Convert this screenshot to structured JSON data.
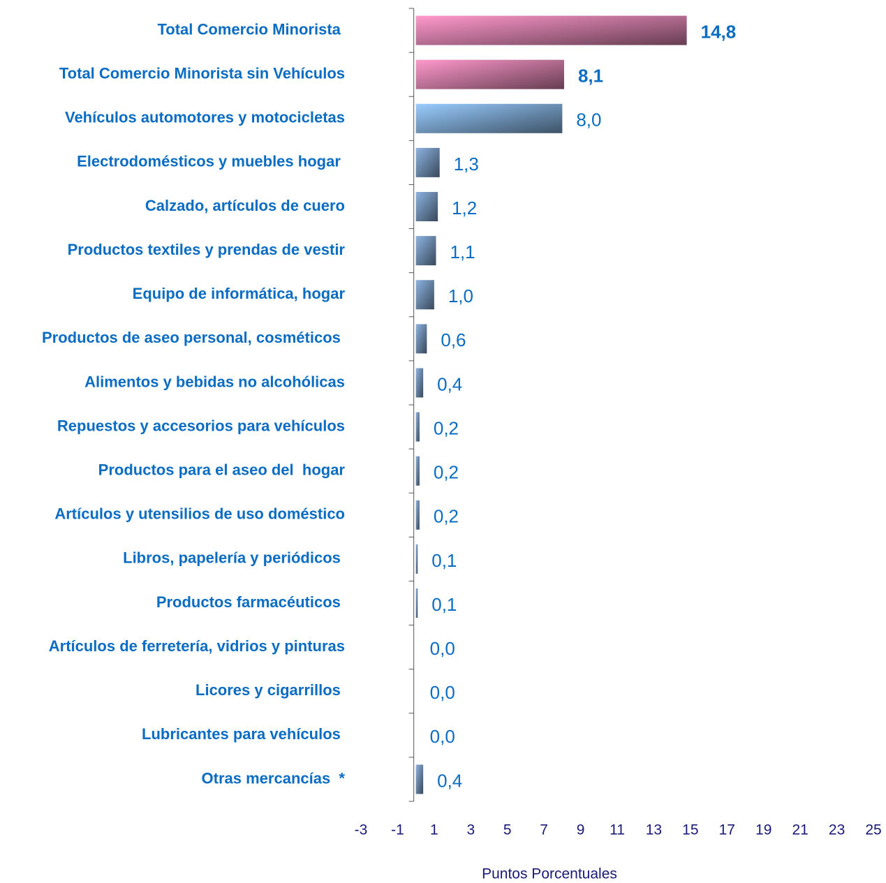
{
  "chart_data": {
    "type": "hbar",
    "x_label": "Puntos Porcentuales",
    "categories": [
      "Total Comercio Minorista ",
      "Total Comercio Minorista sin Vehículos",
      "Vehículos automotores y motocicletas",
      "Electrodomésticos y muebles hogar ",
      "Calzado, artículos de cuero",
      "Productos textiles y prendas de vestir",
      "Equipo de informática, hogar",
      "Productos de aseo personal, cosméticos ",
      "Alimentos y bebidas no alcohólicas",
      "Repuestos y accesorios para vehículos",
      "Productos para el aseo del  hogar",
      "Artículos y utensilios de uso doméstico",
      "Libros, papelería y periódicos ",
      "Productos farmacéuticos ",
      "Artículos de ferretería, vidrios y pinturas",
      "Licores y cigarrillos ",
      "Lubricantes para vehículos ",
      "Otras mercancías  *"
    ],
    "values": [
      14.8,
      8.1,
      8.0,
      1.3,
      1.2,
      1.1,
      1.0,
      0.6,
      0.4,
      0.2,
      0.2,
      0.2,
      0.1,
      0.1,
      0.0,
      0.0,
      0.0,
      0.4
    ],
    "value_labels": [
      "14,8",
      "8,1",
      "8,0",
      "1,3",
      "1,2",
      "1,1",
      "1,0",
      "0,6",
      "0,4",
      "0,2",
      "0,2",
      "0,2",
      "0,1",
      "0,1",
      "0,0",
      "0,0",
      "0,0",
      "0,4"
    ],
    "colors": [
      "#ff99cc",
      "#ff99cc",
      "#99ccff",
      "#8db4e2",
      "#8db4e2",
      "#8db4e2",
      "#8db4e2",
      "#8db4e2",
      "#8db4e2",
      "#8db4e2",
      "#8db4e2",
      "#8db4e2",
      "#8db4e2",
      "#8db4e2",
      "#8db4e2",
      "#8db4e2",
      "#8db4e2",
      "#8db4e2"
    ],
    "bold_value_labels": [
      true,
      true,
      false,
      false,
      false,
      false,
      false,
      false,
      false,
      false,
      false,
      false,
      false,
      false,
      false,
      false,
      false,
      false
    ],
    "xlim": [
      -3,
      25
    ],
    "xticks": [
      -3,
      -1,
      1,
      3,
      5,
      7,
      9,
      11,
      13,
      15,
      17,
      19,
      21,
      23,
      25
    ]
  }
}
